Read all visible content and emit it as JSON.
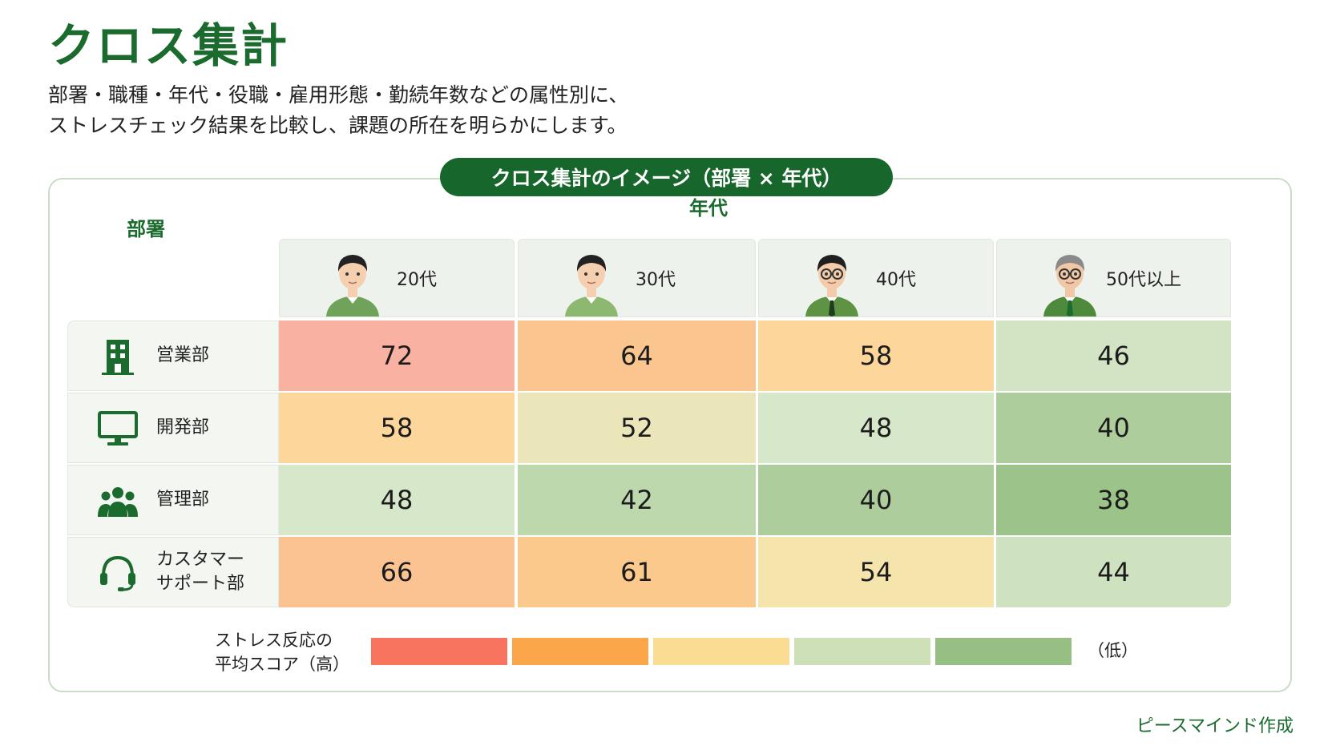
{
  "title": "クロス集計",
  "subtitle": {
    "line1": "部署・職種・年代・役職・雇用形態・勤続年数などの属性別に、",
    "line2": "ストレスチェック結果を比較し、課題の所在を明らかにします。"
  },
  "panel_title": "クロス集計のイメージ（部署 × 年代）",
  "chart_data": {
    "type": "table",
    "title": "クロス集計のイメージ（部署 × 年代）",
    "row_axis_label": "部署",
    "col_axis_label": "年代",
    "columns": [
      "20代",
      "30代",
      "40代",
      "50代以上"
    ],
    "rows": [
      {
        "label": "営業部",
        "icon": "building-icon",
        "values": [
          72,
          64,
          58,
          46
        ]
      },
      {
        "label": "開発部",
        "icon": "monitor-icon",
        "values": [
          58,
          52,
          48,
          40
        ]
      },
      {
        "label": "管理部",
        "icon": "people-icon",
        "values": [
          48,
          42,
          40,
          38
        ]
      },
      {
        "label": "カスタマーサポート部",
        "label_lines": [
          "カスタマー",
          "サポート部"
        ],
        "icon": "headset-icon",
        "values": [
          66,
          61,
          54,
          44
        ]
      }
    ],
    "legend": {
      "label_lines": [
        "ストレス反応の",
        "平均スコア（高）"
      ],
      "low_label": "（低）",
      "colors": [
        "#f9745f",
        "#faa649",
        "#fbdc93",
        "#cde0b7",
        "#97bf83"
      ]
    }
  },
  "footer": "ピースマインド作成"
}
